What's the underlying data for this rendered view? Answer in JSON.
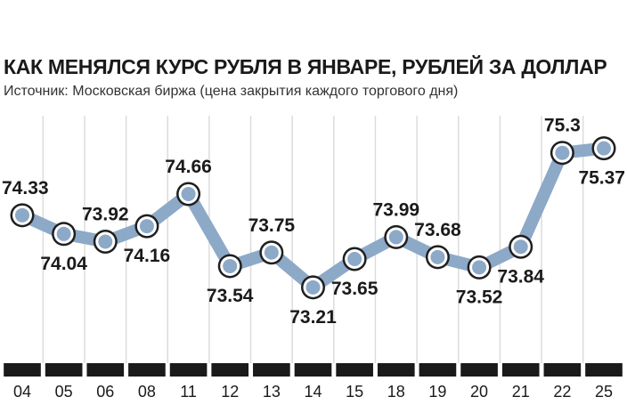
{
  "header": {
    "title": "КАК МЕНЯЛСЯ КУРС РУБЛЯ В ЯНВАРЕ, РУБЛЕЙ ЗА ДОЛЛАР",
    "source": "Источник: Московская биржа (цена закрытия каждого торгового дня)"
  },
  "colors": {
    "line": "#8da9c8",
    "marker_fill": "#8da9c8",
    "marker_ring": "#ffffff",
    "marker_outline": "#1f1f1f",
    "grid": "#dcdcdc",
    "axis_bar": "#1a1a1a",
    "text": "#1a1a1a"
  },
  "chart_data": {
    "type": "line",
    "title": "КАК МЕНЯЛСЯ КУРС РУБЛЯ В ЯНВАРЕ, РУБЛЕЙ ЗА ДОЛЛАР",
    "subtitle": "Источник: Московская биржа (цена закрытия каждого торгового дня)",
    "xlabel": "",
    "ylabel": "",
    "categories": [
      "04",
      "05",
      "06",
      "08",
      "11",
      "12",
      "13",
      "14",
      "15",
      "18",
      "19",
      "20",
      "21",
      "22",
      "25"
    ],
    "series": [
      {
        "values": [
          74.33,
          74.04,
          73.92,
          74.16,
          74.66,
          73.54,
          73.75,
          73.21,
          73.65,
          73.99,
          73.68,
          73.52,
          73.84,
          75.3,
          75.37
        ]
      }
    ],
    "data_labels": [
      "74.33",
      "74.04",
      "73.92",
      "74.16",
      "74.66",
      "73.54",
      "73.75",
      "73.21",
      "73.65",
      "73.99",
      "73.68",
      "73.52",
      "73.84",
      "75.3",
      "75.37"
    ],
    "label_positions": [
      "above",
      "below",
      "above",
      "below",
      "above",
      "below",
      "above",
      "below",
      "below",
      "above",
      "above",
      "below",
      "below",
      "above",
      "below"
    ],
    "ylim": [
      73.0,
      75.6
    ],
    "grid": "vertical",
    "legend": "none"
  }
}
